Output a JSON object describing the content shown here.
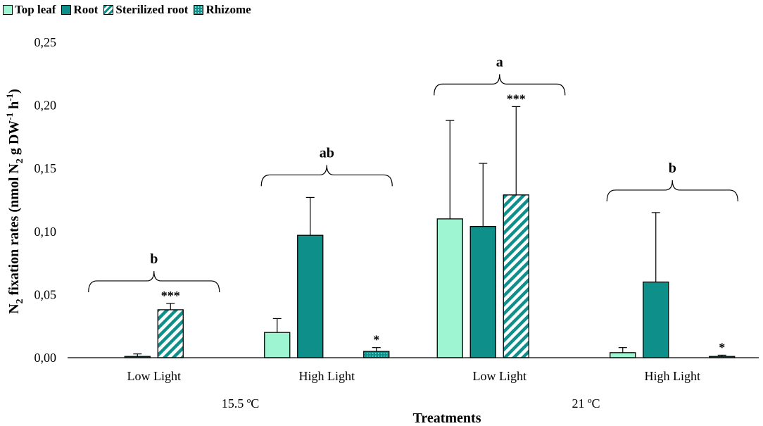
{
  "chart_data": {
    "type": "bar",
    "title": "",
    "xlabel": "Treatments",
    "ylabel_parts": [
      "N",
      "2",
      " fixation rates (nmol N",
      "2",
      " g DW",
      "-1",
      " h",
      "-1",
      ")"
    ],
    "ylim": [
      0,
      0.25
    ],
    "yticks": [
      0,
      0.05,
      0.1,
      0.15,
      0.2,
      0.25
    ],
    "ytick_labels": [
      "0,00",
      "0,05",
      "0,10",
      "0,15",
      "0,20",
      "0,25"
    ],
    "groups": [
      {
        "light": "Low Light",
        "sig": "b"
      },
      {
        "light": "High Light",
        "sig": "ab"
      },
      {
        "light": "Low Light",
        "sig": "a"
      },
      {
        "light": "High Light",
        "sig": "b"
      }
    ],
    "temperatures": [
      {
        "label": "15.5 ºC",
        "groups": [
          0,
          1
        ]
      },
      {
        "label": "21 ºC",
        "groups": [
          2,
          3
        ]
      }
    ],
    "series": [
      {
        "name": "Top leaf",
        "pattern": "solid-light",
        "color": "#9ef5d2",
        "values": [
          null,
          0.02,
          0.11,
          0.004
        ],
        "errors": [
          null,
          0.011,
          0.078,
          0.004
        ],
        "stars": [
          null,
          null,
          null,
          null
        ]
      },
      {
        "name": "Root",
        "pattern": "solid-dark",
        "color": "#0e8f8a",
        "values": [
          0.001,
          0.097,
          0.104,
          0.06
        ],
        "errors": [
          0.002,
          0.03,
          0.05,
          0.055
        ],
        "stars": [
          null,
          null,
          null,
          null
        ]
      },
      {
        "name": "Sterilized root",
        "pattern": "diagonal",
        "color": "#0e8f8a",
        "values": [
          0.038,
          null,
          0.129,
          null
        ],
        "errors": [
          0.005,
          null,
          0.07,
          null
        ],
        "stars": [
          "***",
          null,
          "***",
          null
        ]
      },
      {
        "name": "Rhizome",
        "pattern": "dotted",
        "color": "#0e8f8a",
        "values": [
          null,
          0.005,
          null,
          0.001
        ],
        "errors": [
          null,
          0.003,
          null,
          0.001
        ],
        "stars": [
          null,
          "*",
          null,
          "*"
        ]
      }
    ]
  }
}
